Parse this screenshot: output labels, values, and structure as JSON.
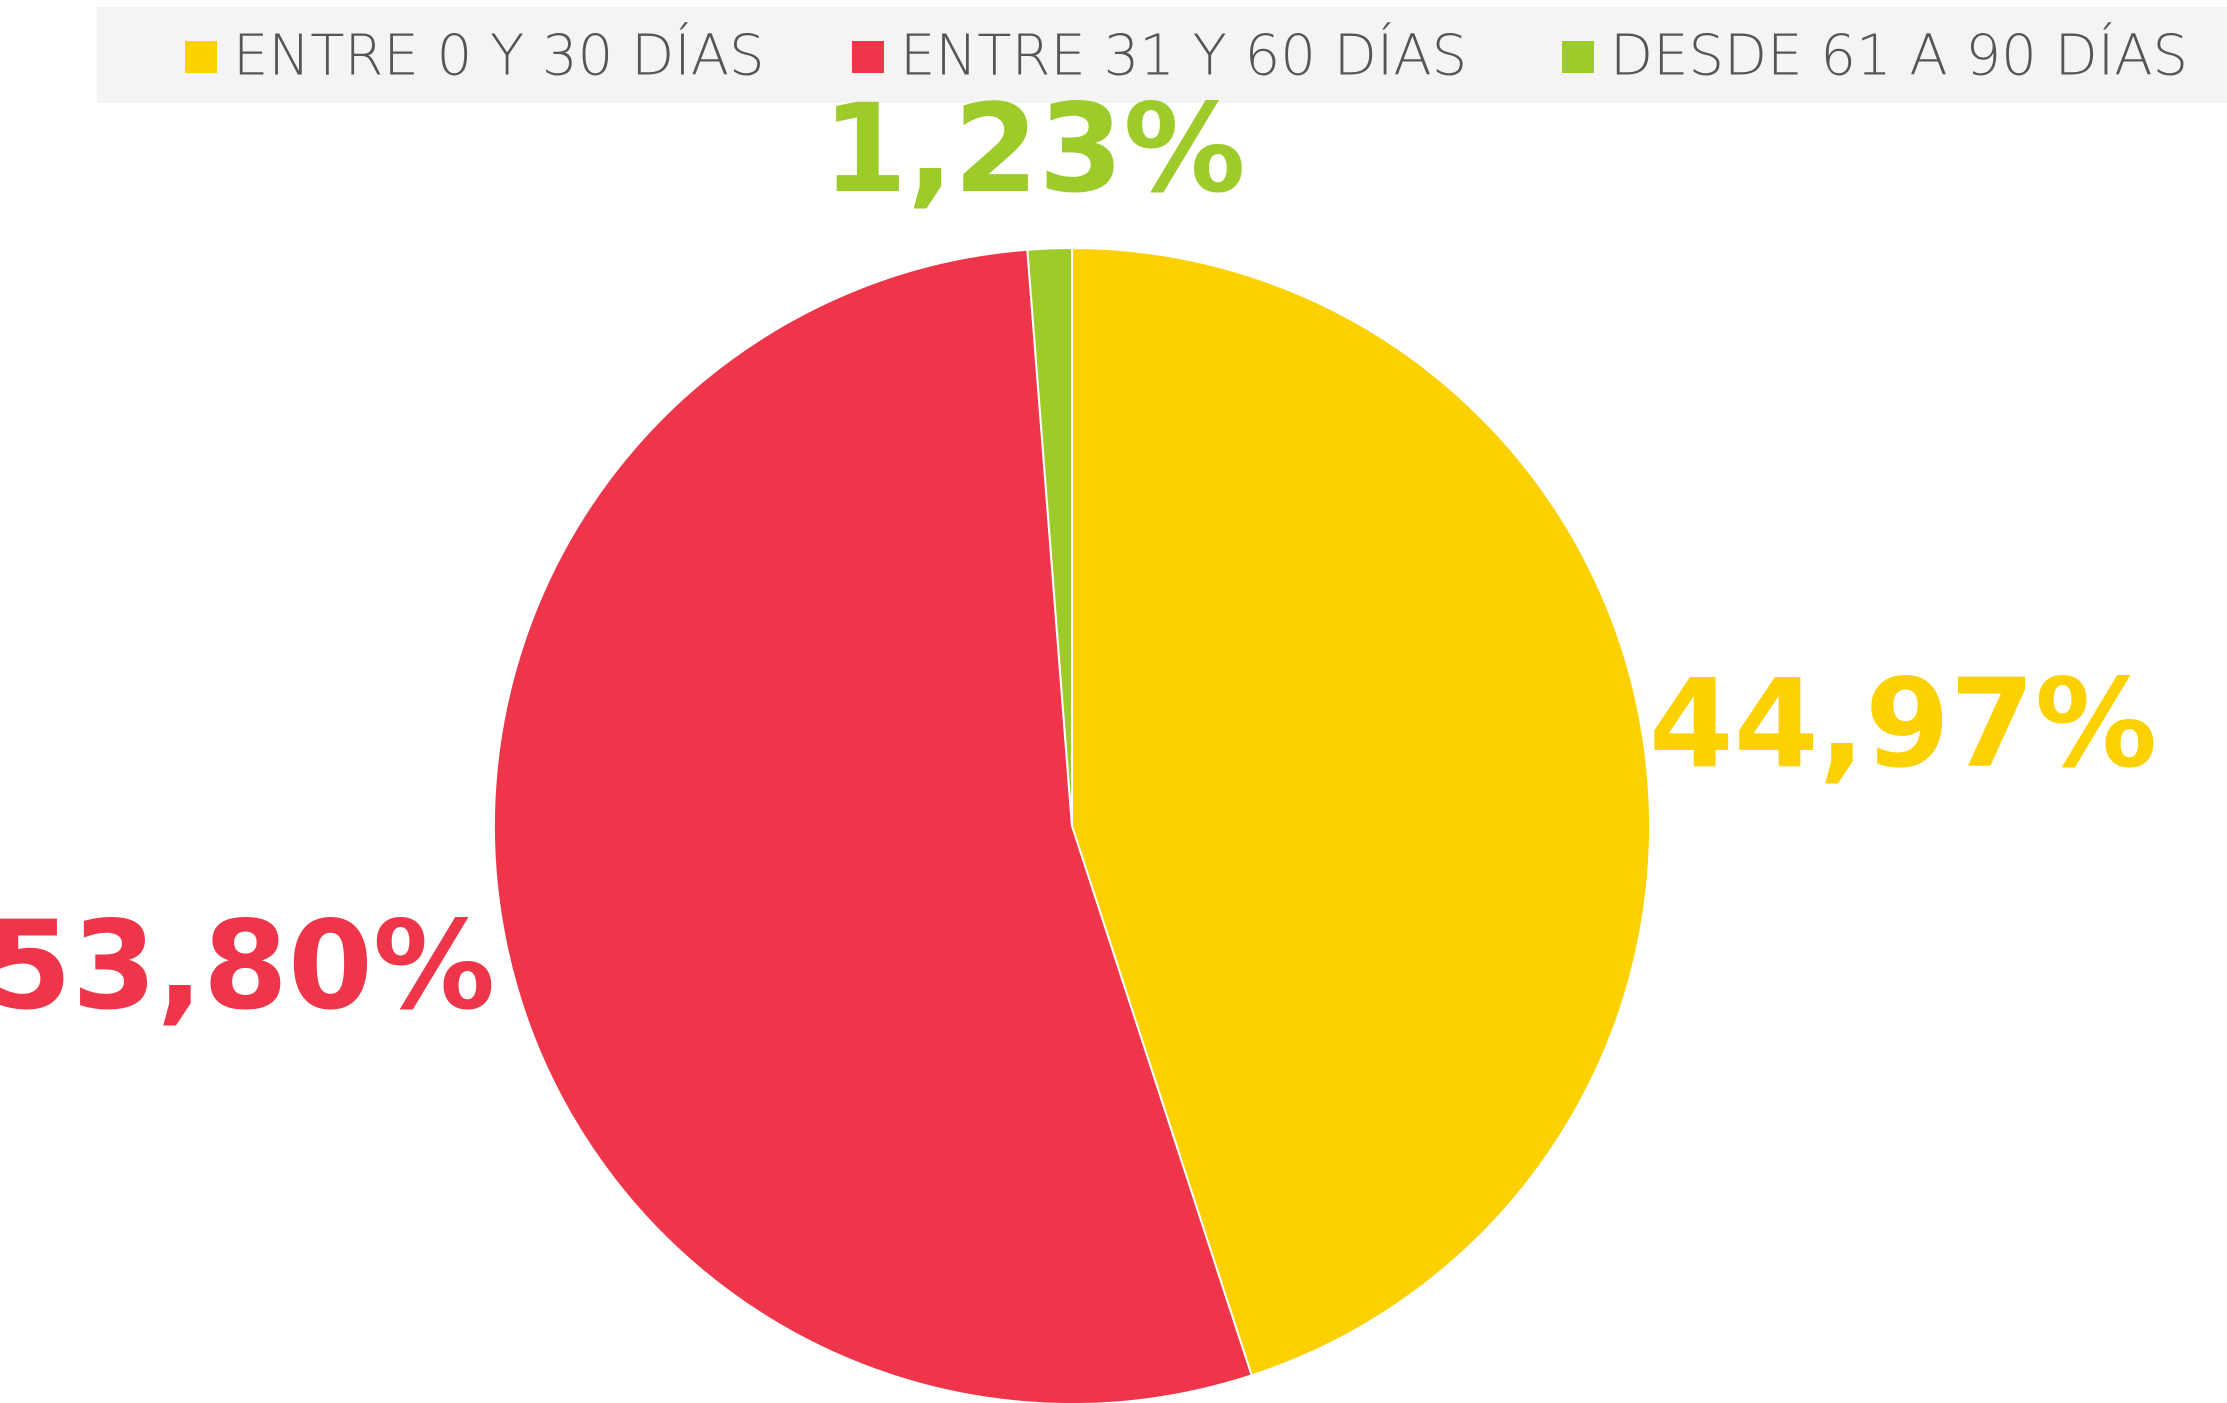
{
  "chart_data": {
    "type": "pie",
    "categories": [
      "ENTRE 0 Y 30 DÍAS",
      "ENTRE 31 Y 60 DÍAS",
      "DESDE 61 A 90 DÍAS"
    ],
    "values": [
      44.97,
      53.8,
      1.23
    ],
    "value_labels": [
      "44,97%",
      "53,80%",
      "1,23%"
    ],
    "colors": [
      "#FDD000",
      "#EF3549",
      "#9DCB2A"
    ],
    "legend": "top"
  }
}
